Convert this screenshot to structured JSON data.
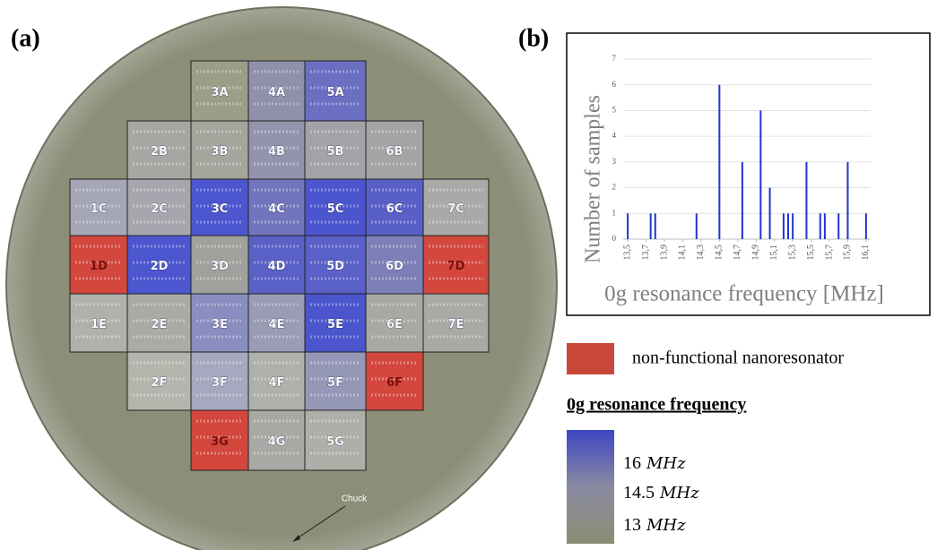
{
  "panels": [
    "(a)",
    "(b)"
  ],
  "wafer": {
    "annotation": "Chuck",
    "dies": [
      {
        "label": "3A",
        "color": "#9c9f88"
      },
      {
        "label": "4A",
        "color": "#8e90ac"
      },
      {
        "label": "5A",
        "color": "#6a6fc2"
      },
      {
        "label": "2B",
        "color": "#a6a7a2"
      },
      {
        "label": "3B",
        "color": "#a4a59c"
      },
      {
        "label": "4B",
        "color": "#9294ae"
      },
      {
        "label": "5B",
        "color": "#a2a3a6"
      },
      {
        "label": "6B",
        "color": "#a3a4a4"
      },
      {
        "label": "1C",
        "color": "#a5a7b6"
      },
      {
        "label": "2C",
        "color": "#a6a7ae"
      },
      {
        "label": "3C",
        "color": "#4c56cf"
      },
      {
        "label": "4C",
        "color": "#7275bd"
      },
      {
        "label": "5C",
        "color": "#4b55cd"
      },
      {
        "label": "6C",
        "color": "#5860c8"
      },
      {
        "label": "7C",
        "color": "#a9aaa8"
      },
      {
        "label": "1D",
        "color": "#d3473d"
      },
      {
        "label": "2D",
        "color": "#4c56cf"
      },
      {
        "label": "3D",
        "color": "#a0a19c"
      },
      {
        "label": "4D",
        "color": "#5a61c6"
      },
      {
        "label": "5D",
        "color": "#5960c6"
      },
      {
        "label": "6D",
        "color": "#7d80b8"
      },
      {
        "label": "7D",
        "color": "#d3473d"
      },
      {
        "label": "1E",
        "color": "#b0b1aa"
      },
      {
        "label": "2E",
        "color": "#aaaba4"
      },
      {
        "label": "3E",
        "color": "#8a8dc0"
      },
      {
        "label": "4E",
        "color": "#9a9bb4"
      },
      {
        "label": "5E",
        "color": "#4b55cd"
      },
      {
        "label": "6E",
        "color": "#a8a9a2"
      },
      {
        "label": "7E",
        "color": "#a9aaa6"
      },
      {
        "label": "2F",
        "color": "#b4b5ac"
      },
      {
        "label": "3F",
        "color": "#a6a8c0"
      },
      {
        "label": "4F",
        "color": "#b0b1aa"
      },
      {
        "label": "5F",
        "color": "#9597b6"
      },
      {
        "label": "6F",
        "color": "#d3473d"
      },
      {
        "label": "3G",
        "color": "#d3473d"
      },
      {
        "label": "4G",
        "color": "#a8a9a4"
      },
      {
        "label": "5G",
        "color": "#aeafa8"
      }
    ]
  },
  "chart_data": {
    "type": "bar",
    "xlabel": "0g resonance frequency [MHz]",
    "ylabel": "Number of samples",
    "x": [
      13.5,
      13.75,
      13.8,
      14.25,
      14.5,
      14.75,
      14.95,
      15.05,
      15.2,
      15.25,
      15.3,
      15.45,
      15.6,
      15.65,
      15.8,
      15.9,
      16.1
    ],
    "values": [
      1,
      1,
      1,
      1,
      6,
      3,
      5,
      2,
      1,
      1,
      1,
      3,
      1,
      1,
      1,
      3,
      1
    ],
    "color": "#1f35d0",
    "xlim": [
      13.45,
      16.15
    ],
    "xticks": [
      {
        "value": 13.5,
        "label": "13,5"
      },
      {
        "value": 13.7,
        "label": "13,7"
      },
      {
        "value": 13.9,
        "label": "13,9"
      },
      {
        "value": 14.1,
        "label": "14,1"
      },
      {
        "value": 14.3,
        "label": "14,3"
      },
      {
        "value": 14.5,
        "label": "14,5"
      },
      {
        "value": 14.7,
        "label": "14,7"
      },
      {
        "value": 14.9,
        "label": "14,9"
      },
      {
        "value": 15.1,
        "label": "15,1"
      },
      {
        "value": 15.3,
        "label": "15,3"
      },
      {
        "value": 15.5,
        "label": "15,5"
      },
      {
        "value": 15.7,
        "label": "15,7"
      },
      {
        "value": 15.9,
        "label": "15,9"
      },
      {
        "value": 16.1,
        "label": "16,1"
      }
    ],
    "ylim": [
      0,
      7
    ],
    "yticks": [
      0,
      1,
      2,
      3,
      4,
      5,
      6,
      7
    ],
    "grid": true
  },
  "legend": {
    "non_functional": {
      "label": "non-functional nanoresonator",
      "color": "#c8473a"
    },
    "title": "0g resonance frequency",
    "colors": [
      "#3d46c2",
      "#8a8aa2",
      "#8b8e72"
    ],
    "scale": [
      {
        "value": 16,
        "unit": "MHz"
      },
      {
        "value": 14.5,
        "unit": "MHz"
      },
      {
        "value": 13,
        "unit": "MHz"
      }
    ]
  }
}
